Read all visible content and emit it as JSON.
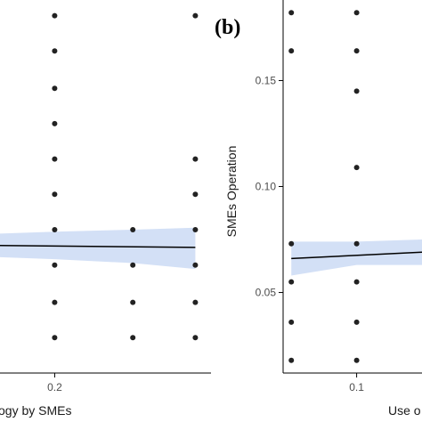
{
  "colors": {
    "points": "#222222",
    "band": "#aec6ee",
    "fit": "#000000",
    "axis": "#000000"
  },
  "chart_data": [
    {
      "type": "scatter",
      "panel": "left",
      "xlabel": "ogy by SMEs",
      "ylabel": "",
      "x_ticks": [
        0.2
      ],
      "x_tick_labels": [
        "0.2"
      ],
      "xlim": [
        0.165,
        0.3
      ],
      "ylim": [
        0.0,
        0.19
      ],
      "points": [
        {
          "x": 0.2,
          "y": 0.182
        },
        {
          "x": 0.2,
          "y": 0.164
        },
        {
          "x": 0.2,
          "y": 0.145
        },
        {
          "x": 0.2,
          "y": 0.127
        },
        {
          "x": 0.2,
          "y": 0.109
        },
        {
          "x": 0.2,
          "y": 0.091
        },
        {
          "x": 0.2,
          "y": 0.073
        },
        {
          "x": 0.2,
          "y": 0.055
        },
        {
          "x": 0.2,
          "y": 0.036
        },
        {
          "x": 0.2,
          "y": 0.018
        },
        {
          "x": 0.25,
          "y": 0.073
        },
        {
          "x": 0.25,
          "y": 0.055
        },
        {
          "x": 0.25,
          "y": 0.036
        },
        {
          "x": 0.25,
          "y": 0.018
        },
        {
          "x": 0.29,
          "y": 0.182
        },
        {
          "x": 0.29,
          "y": 0.109
        },
        {
          "x": 0.29,
          "y": 0.091
        },
        {
          "x": 0.29,
          "y": 0.073
        },
        {
          "x": 0.29,
          "y": 0.055
        },
        {
          "x": 0.29,
          "y": 0.036
        },
        {
          "x": 0.29,
          "y": 0.018
        }
      ],
      "fit": {
        "x": [
          0.165,
          0.29
        ],
        "y": [
          0.065,
          0.064
        ]
      },
      "band": {
        "x": [
          0.165,
          0.2,
          0.25,
          0.29
        ],
        "upper": [
          0.071,
          0.072,
          0.073,
          0.074
        ],
        "lower": [
          0.059,
          0.058,
          0.056,
          0.053
        ]
      }
    },
    {
      "type": "scatter",
      "panel": "b",
      "label": "(b)",
      "xlabel": "Use o",
      "ylabel": "SMEs Operation",
      "y_ticks": [
        0.05,
        0.1,
        0.15
      ],
      "y_tick_labels": [
        "0.05",
        "0.10",
        "0.15"
      ],
      "x_ticks": [
        0.1
      ],
      "x_tick_labels": [
        "0.1"
      ],
      "xlim": [
        0.055,
        0.14
      ],
      "ylim": [
        0.012,
        0.188
      ],
      "points": [
        {
          "x": 0.06,
          "y": 0.182
        },
        {
          "x": 0.06,
          "y": 0.164
        },
        {
          "x": 0.06,
          "y": 0.073
        },
        {
          "x": 0.06,
          "y": 0.055
        },
        {
          "x": 0.06,
          "y": 0.036
        },
        {
          "x": 0.06,
          "y": 0.018
        },
        {
          "x": 0.1,
          "y": 0.182
        },
        {
          "x": 0.1,
          "y": 0.164
        },
        {
          "x": 0.1,
          "y": 0.145
        },
        {
          "x": 0.1,
          "y": 0.109
        },
        {
          "x": 0.1,
          "y": 0.073
        },
        {
          "x": 0.1,
          "y": 0.055
        },
        {
          "x": 0.1,
          "y": 0.036
        },
        {
          "x": 0.1,
          "y": 0.018
        }
      ],
      "fit": {
        "x": [
          0.06,
          0.14
        ],
        "y": [
          0.066,
          0.069
        ]
      },
      "band": {
        "x": [
          0.06,
          0.1,
          0.14
        ],
        "upper": [
          0.074,
          0.074,
          0.075
        ],
        "lower": [
          0.058,
          0.063,
          0.063
        ]
      }
    }
  ]
}
